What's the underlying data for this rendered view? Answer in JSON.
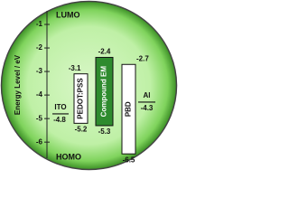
{
  "chart_data": {
    "type": "energy-level",
    "y_label": "Energy Level / eV",
    "top_label": "LUMO",
    "bottom_label": "HOMO",
    "ylim": [
      -0.5,
      -6.8
    ],
    "yticks": [
      -1,
      -2,
      -3,
      -4,
      -5,
      -6
    ],
    "materials": [
      {
        "name": "ITO",
        "level": -4.8
      },
      {
        "name": "PEDOT:PSS",
        "lumo": -3.1,
        "homo": -5.2,
        "color": "#ffffff"
      },
      {
        "name": "Compound EM",
        "lumo": -2.4,
        "homo": -5.3,
        "color": "#2e8b2e"
      },
      {
        "name": "PBD",
        "lumo": -2.7,
        "homo": -6.5,
        "color": "#ffffff"
      },
      {
        "name": "Al",
        "level": -4.3
      }
    ]
  }
}
